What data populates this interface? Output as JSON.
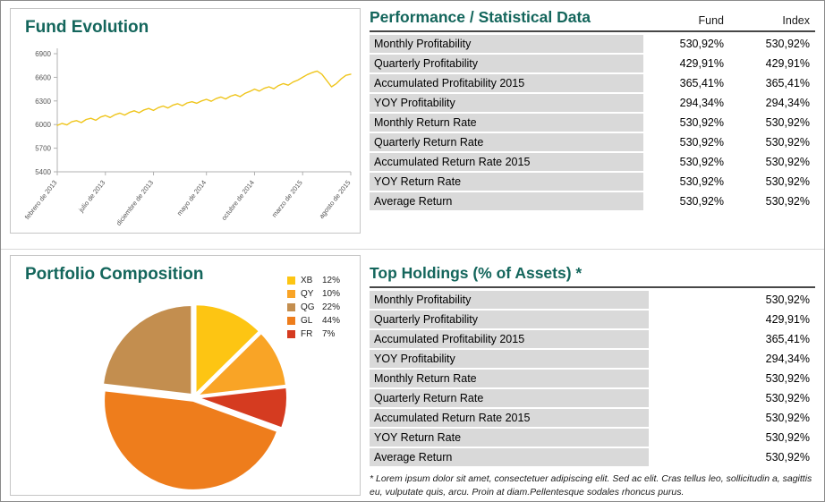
{
  "fund_evolution": {
    "title": "Fund Evolution"
  },
  "portfolio": {
    "title": "Portfolio Composition"
  },
  "performance": {
    "title": "Performance / Statistical Data",
    "col_fund": "Fund",
    "col_index": "Index",
    "rows": [
      {
        "label": "Monthly Profitability",
        "fund": "530,92%",
        "index": "530,92%"
      },
      {
        "label": "Quarterly Profitability",
        "fund": "429,91%",
        "index": "429,91%"
      },
      {
        "label": "Accumulated Profitability 2015",
        "fund": "365,41%",
        "index": "365,41%"
      },
      {
        "label": "YOY Profitability",
        "fund": "294,34%",
        "index": "294,34%"
      },
      {
        "label": "Monthly Return Rate",
        "fund": "530,92%",
        "index": "530,92%"
      },
      {
        "label": "Quarterly Return Rate",
        "fund": "530,92%",
        "index": "530,92%"
      },
      {
        "label": "Accumulated Return Rate 2015",
        "fund": "530,92%",
        "index": "530,92%"
      },
      {
        "label": "YOY Return Rate",
        "fund": "530,92%",
        "index": "530,92%"
      },
      {
        "label": "Average Return",
        "fund": "530,92%",
        "index": "530,92%"
      }
    ]
  },
  "top_holdings": {
    "title": "Top Holdings (% of Assets) *",
    "rows": [
      {
        "label": "Monthly Profitability",
        "value": "530,92%"
      },
      {
        "label": "Quarterly Profitability",
        "value": "429,91%"
      },
      {
        "label": "Accumulated Profitability 2015",
        "value": "365,41%"
      },
      {
        "label": "YOY Profitability",
        "value": "294,34%"
      },
      {
        "label": "Monthly Return Rate",
        "value": "530,92%"
      },
      {
        "label": "Quarterly Return Rate",
        "value": "530,92%"
      },
      {
        "label": "Accumulated Return Rate 2015",
        "value": "530,92%"
      },
      {
        "label": "YOY Return Rate",
        "value": "530,92%"
      },
      {
        "label": "Average Return",
        "value": "530,92%"
      }
    ],
    "footnote": "* Lorem ipsum dolor sit amet, consectetuer adipiscing elit. Sed ac elit. Cras tellus leo, sollicitudin a, sagittis eu, vulputate quis, arcu. Proin at diam.Pellentesque sodales rhoncus purus."
  },
  "chart_data": [
    {
      "type": "line",
      "title": "Fund Evolution",
      "line_color": "#efc51c",
      "ylim": [
        5400,
        6900
      ],
      "y_ticks": [
        5400,
        5700,
        6000,
        6300,
        6600,
        6900
      ],
      "x_tick_labels": [
        "febrero de 2013",
        "julio de 2013",
        "diciembre de 2013",
        "mayo de 2014",
        "octubre de 2014",
        "marzo de 2015",
        "agosto de 2015"
      ],
      "grid": false,
      "values": [
        5990,
        6015,
        5995,
        6035,
        6050,
        6025,
        6065,
        6080,
        6055,
        6095,
        6115,
        6090,
        6125,
        6145,
        6120,
        6155,
        6175,
        6150,
        6185,
        6205,
        6180,
        6215,
        6235,
        6210,
        6245,
        6265,
        6240,
        6275,
        6290,
        6270,
        6300,
        6320,
        6295,
        6330,
        6350,
        6325,
        6360,
        6380,
        6355,
        6395,
        6420,
        6450,
        6425,
        6460,
        6480,
        6455,
        6495,
        6520,
        6500,
        6540,
        6565,
        6600,
        6635,
        6660,
        6680,
        6640,
        6560,
        6480,
        6520,
        6580,
        6625,
        6640
      ]
    },
    {
      "type": "pie",
      "title": "Portfolio Composition",
      "legend_position": "top-right",
      "slices": [
        {
          "label": "XB",
          "pct": "12%",
          "value": 12,
          "color": "#fdc513"
        },
        {
          "label": "QY",
          "pct": "10%",
          "value": 10,
          "color": "#f9a426"
        },
        {
          "label": "QG",
          "pct": "22%",
          "value": 22,
          "color": "#c38e4f"
        },
        {
          "label": "GL",
          "pct": "44%",
          "value": 44,
          "color": "#ee7d1c"
        },
        {
          "label": "FR",
          "pct": "7%",
          "value": 7,
          "color": "#d53b20"
        }
      ],
      "clockwise_order_from_top": [
        "XB",
        "QY",
        "FR",
        "GL",
        "QG"
      ]
    }
  ]
}
